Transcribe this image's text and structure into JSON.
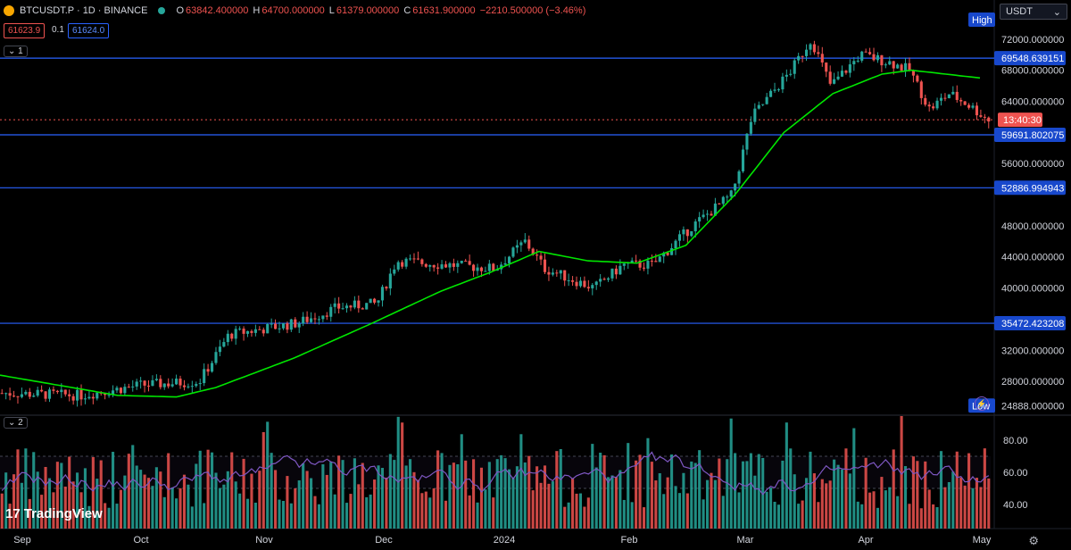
{
  "header": {
    "symbol": "BTCUSDT.P · 1D · BINANCE",
    "open_label": "O",
    "open": "63842.400000",
    "high_label": "H",
    "high": "64700.000000",
    "low_label": "L",
    "low": "61379.000000",
    "close_label": "C",
    "close": "61631.900000",
    "change": "−2210.500000 (−3.46%)",
    "bid": "61623.9",
    "spread": "0.1",
    "ask": "61624.0"
  },
  "currency_selector": {
    "value": "USDT"
  },
  "pane_tags": [
    "1",
    "2"
  ],
  "price_axis_labels": [
    "72000.000000",
    "68000.000000",
    "64000.000000",
    "56000.000000",
    "48000.000000",
    "44000.000000",
    "40000.000000",
    "32000.000000",
    "28000.000000",
    "24888.000000"
  ],
  "oscillator_axis_labels": [
    "80.00",
    "60.00",
    "40.00"
  ],
  "time_axis_labels": [
    "Sep",
    "Oct",
    "Nov",
    "Dec",
    "2024",
    "Feb",
    "Mar",
    "Apr",
    "May"
  ],
  "level_tags": [
    "69548.639151",
    "59691.802075",
    "52886.994943",
    "35472.423208"
  ],
  "countdown": "13:40:30",
  "high_tag": {
    "label": "High"
  },
  "low_tag": {
    "label": "Low",
    "value": "24888.000000"
  },
  "brand": {
    "name": "TradingView"
  },
  "colors": {
    "up": "#26a69a",
    "down": "#ef5350",
    "ma": "#00e600",
    "level": "#2962ff",
    "oscillator": "#7e57c2"
  },
  "chart_data": {
    "type": "candlestick",
    "y_range": [
      24000,
      74500
    ],
    "levels": [
      69548.639151,
      59691.802075,
      52886.994943,
      35472.423208
    ],
    "last_price": 61631.9,
    "ma_path_price": [
      [
        0,
        28800
      ],
      [
        0.06,
        27500
      ],
      [
        0.12,
        26200
      ],
      [
        0.18,
        26000
      ],
      [
        0.22,
        27200
      ],
      [
        0.3,
        31000
      ],
      [
        0.38,
        35500
      ],
      [
        0.45,
        39600
      ],
      [
        0.5,
        42000
      ],
      [
        0.55,
        44700
      ],
      [
        0.6,
        43500
      ],
      [
        0.65,
        43200
      ],
      [
        0.7,
        45500
      ],
      [
        0.75,
        52000
      ],
      [
        0.8,
        60000
      ],
      [
        0.85,
        65000
      ],
      [
        0.9,
        67500
      ],
      [
        0.93,
        68000
      ],
      [
        1,
        67000
      ]
    ],
    "oscillator_range": [
      25,
      95
    ],
    "oscillator_guides": [
      70,
      50
    ]
  }
}
